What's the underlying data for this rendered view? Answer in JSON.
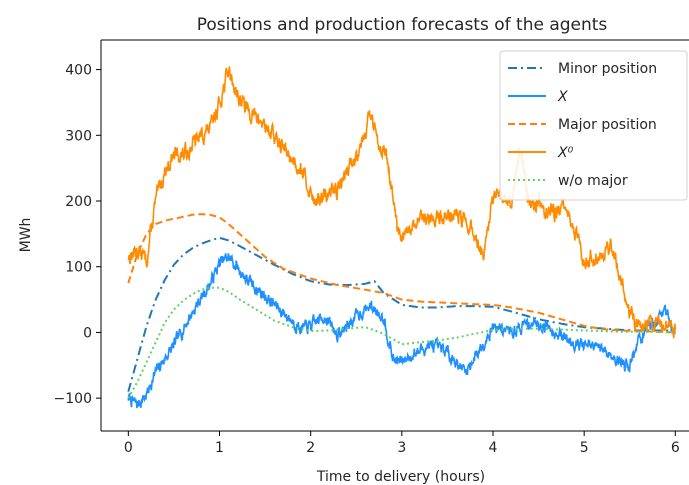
{
  "chart_data": {
    "type": "line",
    "title": "Positions and production forecasts of the agents",
    "xlabel": "Time to delivery (hours)",
    "ylabel": "MWh",
    "xlim": [
      -0.3,
      6.15
    ],
    "ylim": [
      -150,
      445
    ],
    "xticks": [
      0,
      1,
      2,
      3,
      4,
      5,
      6
    ],
    "yticks": [
      -100,
      0,
      100,
      200,
      300,
      400
    ],
    "grid": false,
    "legend": "top-right",
    "series": [
      {
        "name": "Minor position",
        "color": "#1f77b4",
        "style": "dashdot",
        "x": [
          0,
          0.1,
          0.2,
          0.3,
          0.4,
          0.5,
          0.6,
          0.7,
          0.8,
          0.9,
          1.0,
          1.1,
          1.2,
          1.4,
          1.6,
          1.8,
          2.0,
          2.2,
          2.4,
          2.6,
          2.7,
          2.8,
          3.0,
          3.2,
          3.4,
          3.6,
          3.8,
          4.0,
          4.2,
          4.5,
          4.8,
          5.0,
          5.2,
          5.4,
          5.6,
          5.8,
          6.0
        ],
        "y": [
          -90,
          -40,
          10,
          50,
          80,
          103,
          118,
          128,
          135,
          140,
          144,
          140,
          133,
          118,
          103,
          89,
          78,
          73,
          72,
          74,
          78,
          60,
          42,
          38,
          38,
          40,
          40,
          39,
          32,
          20,
          12,
          8,
          6,
          4,
          3,
          3,
          3
        ]
      },
      {
        "name": "X",
        "color": "#1e90ff",
        "style": "noisy",
        "seed": 7,
        "noise": 0.42,
        "x": [
          0,
          0.1,
          0.2,
          0.3,
          0.5,
          0.7,
          0.9,
          1.0,
          1.1,
          1.3,
          1.5,
          1.7,
          1.9,
          2.0,
          2.15,
          2.3,
          2.5,
          2.65,
          2.8,
          2.9,
          3.0,
          3.1,
          3.3,
          3.5,
          3.7,
          3.9,
          4.0,
          4.2,
          4.4,
          4.6,
          4.8,
          5.0,
          5.2,
          5.4,
          5.5,
          5.6,
          5.8,
          5.9,
          6.0
        ],
        "y": [
          -100,
          -110,
          -95,
          -60,
          -20,
          30,
          75,
          105,
          115,
          80,
          55,
          30,
          5,
          10,
          25,
          -5,
          25,
          40,
          25,
          -40,
          -45,
          -35,
          -20,
          -30,
          -60,
          -15,
          10,
          0,
          15,
          10,
          -10,
          -20,
          -25,
          -45,
          -50,
          -10,
          20,
          35,
          -5
        ]
      },
      {
        "name": "Major position",
        "color": "#ff7f0e",
        "style": "dashed",
        "x": [
          0,
          0.1,
          0.2,
          0.3,
          0.4,
          0.5,
          0.6,
          0.7,
          0.8,
          0.9,
          1.0,
          1.1,
          1.3,
          1.5,
          1.7,
          2.0,
          2.3,
          2.6,
          2.8,
          3.0,
          3.2,
          3.5,
          3.8,
          4.0,
          4.2,
          4.5,
          4.8,
          5.0,
          5.2,
          5.4,
          5.6,
          5.8,
          6.0
        ],
        "y": [
          75,
          120,
          150,
          165,
          170,
          173,
          176,
          179,
          180,
          179,
          175,
          165,
          140,
          115,
          97,
          82,
          72,
          65,
          60,
          50,
          47,
          45,
          43,
          42,
          38,
          30,
          18,
          10,
          5,
          3,
          2,
          1,
          0
        ]
      },
      {
        "name": "X⁰",
        "color": "#ff8c00",
        "style": "noisy",
        "seed": 13,
        "noise": 0.55,
        "x": [
          0,
          0.1,
          0.2,
          0.3,
          0.4,
          0.5,
          0.6,
          0.8,
          0.9,
          1.0,
          1.1,
          1.2,
          1.3,
          1.5,
          1.7,
          1.9,
          2.0,
          2.1,
          2.3,
          2.5,
          2.65,
          2.75,
          2.85,
          2.95,
          3.0,
          3.2,
          3.4,
          3.6,
          3.8,
          3.9,
          4.0,
          4.2,
          4.3,
          4.4,
          4.5,
          4.6,
          4.8,
          5.0,
          5.2,
          5.3,
          5.5,
          5.6,
          5.8,
          6.0
        ],
        "y": [
          115,
          125,
          110,
          200,
          245,
          270,
          270,
          300,
          310,
          350,
          400,
          360,
          340,
          315,
          280,
          250,
          210,
          200,
          220,
          270,
          330,
          290,
          260,
          150,
          140,
          170,
          175,
          180,
          150,
          110,
          205,
          200,
          285,
          190,
          200,
          180,
          190,
          110,
          120,
          135,
          30,
          10,
          15,
          10
        ]
      },
      {
        "name": "w/o major",
        "color": "#5ed25e",
        "style": "dotted",
        "x": [
          0,
          0.1,
          0.2,
          0.3,
          0.4,
          0.5,
          0.6,
          0.7,
          0.8,
          0.9,
          1.0,
          1.1,
          1.2,
          1.4,
          1.6,
          1.8,
          2.0,
          2.2,
          2.4,
          2.6,
          2.8,
          3.0,
          3.2,
          3.4,
          3.6,
          3.8,
          4.0,
          4.2,
          4.4,
          4.6,
          4.8,
          5.0,
          5.2,
          5.4,
          5.6,
          5.8,
          6.0
        ],
        "y": [
          -100,
          -75,
          -45,
          -15,
          15,
          35,
          48,
          58,
          65,
          68,
          68,
          62,
          52,
          35,
          18,
          8,
          2,
          3,
          6,
          8,
          -2,
          -18,
          -15,
          -12,
          -8,
          -2,
          4,
          5,
          6,
          5,
          4,
          3,
          2,
          1,
          1,
          1,
          0
        ]
      }
    ]
  }
}
